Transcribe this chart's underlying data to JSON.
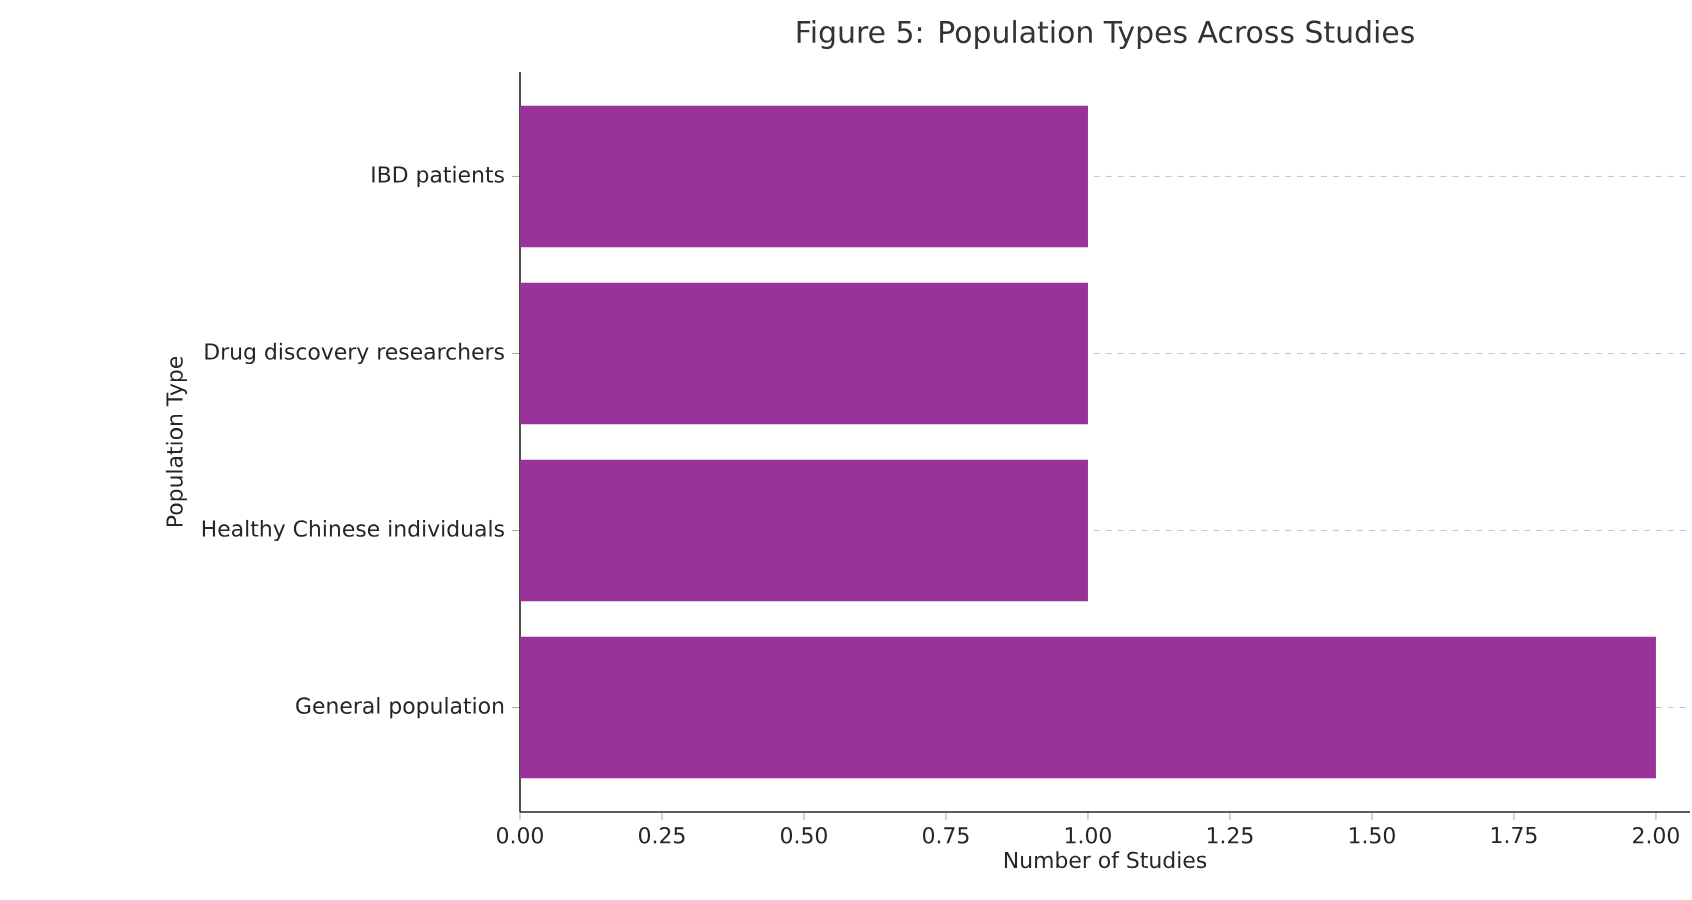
{
  "chart_data": {
    "type": "bar",
    "orientation": "horizontal",
    "title": "Figure 5: Population Types Across Studies",
    "xlabel": "Number of Studies",
    "ylabel": "Population Type",
    "categories": [
      "IBD patients",
      "Drug discovery researchers",
      "Healthy Chinese individuals",
      "General population"
    ],
    "values": [
      1,
      1,
      1,
      2
    ],
    "color": "#993399",
    "xlim": [
      0,
      2.06
    ],
    "xticks": [
      {
        "value": 0,
        "label": "0.00"
      },
      {
        "value": 0.25,
        "label": "0.25"
      },
      {
        "value": 0.5,
        "label": "0.50"
      },
      {
        "value": 0.75,
        "label": "0.75"
      },
      {
        "value": 1,
        "label": "1.00"
      },
      {
        "value": 1.25,
        "label": "1.25"
      },
      {
        "value": 1.5,
        "label": "1.50"
      },
      {
        "value": 1.75,
        "label": "1.75"
      },
      {
        "value": 2,
        "label": "2.00"
      }
    ],
    "grid": "y"
  }
}
